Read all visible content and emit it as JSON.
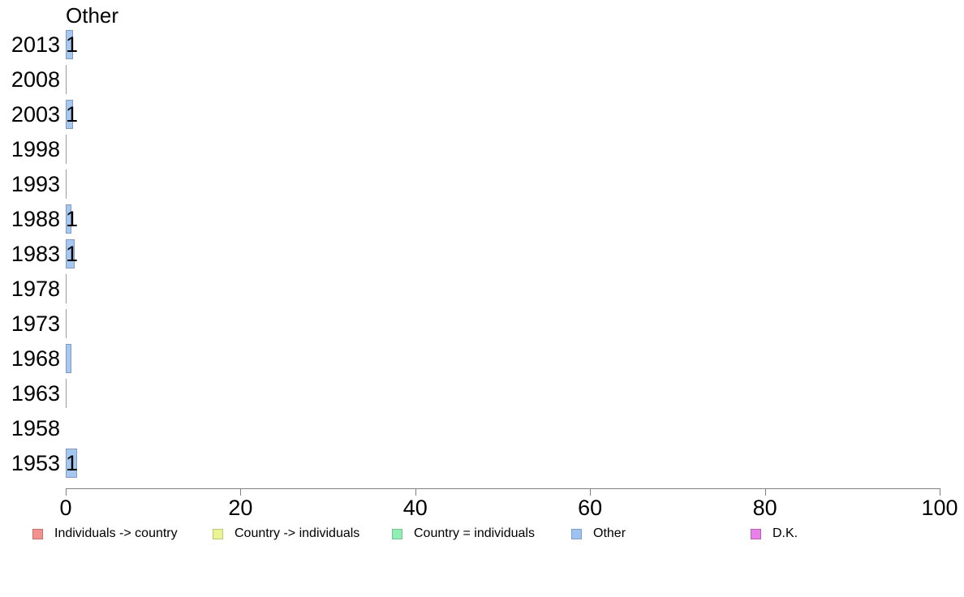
{
  "chart_data": {
    "type": "bar",
    "orientation": "horizontal",
    "title": "Other",
    "categories": [
      "2013",
      "2008",
      "2003",
      "1998",
      "1993",
      "1988",
      "1983",
      "1978",
      "1973",
      "1968",
      "1963",
      "1958",
      "1953"
    ],
    "values": [
      0.85,
      0,
      0.85,
      0,
      0,
      0.65,
      1.0,
      0,
      0,
      0.65,
      0,
      null,
      1.3
    ],
    "bar_labels": [
      "1",
      "",
      "1",
      "",
      "",
      "1",
      "1",
      "",
      "",
      "",
      "",
      "",
      "1"
    ],
    "xlabel": "",
    "ylabel": "",
    "xlim": [
      0,
      100
    ],
    "x_ticks": [
      0,
      20,
      40,
      60,
      80,
      100
    ],
    "grid": false,
    "legend_position": "bottom",
    "bar_fill": "#A4C8F0",
    "bar_border": "#8399C0",
    "zero_line_color": "#9B9B9B",
    "axis_color": "#808080",
    "legend": [
      {
        "label": "Individuals -> country",
        "fill": "#F4908E",
        "border": "#C4706F"
      },
      {
        "label": "Country -> individuals",
        "fill": "#EBF492",
        "border": "#BCC775"
      },
      {
        "label": "Country = individuals",
        "fill": "#90F0B4",
        "border": "#79BD90"
      },
      {
        "label": "Other",
        "fill": "#9FC3F0",
        "border": "#7D9CC8"
      },
      {
        "label": "D.K.",
        "fill": "#E97FE8",
        "border": "#B65FB5"
      }
    ]
  }
}
